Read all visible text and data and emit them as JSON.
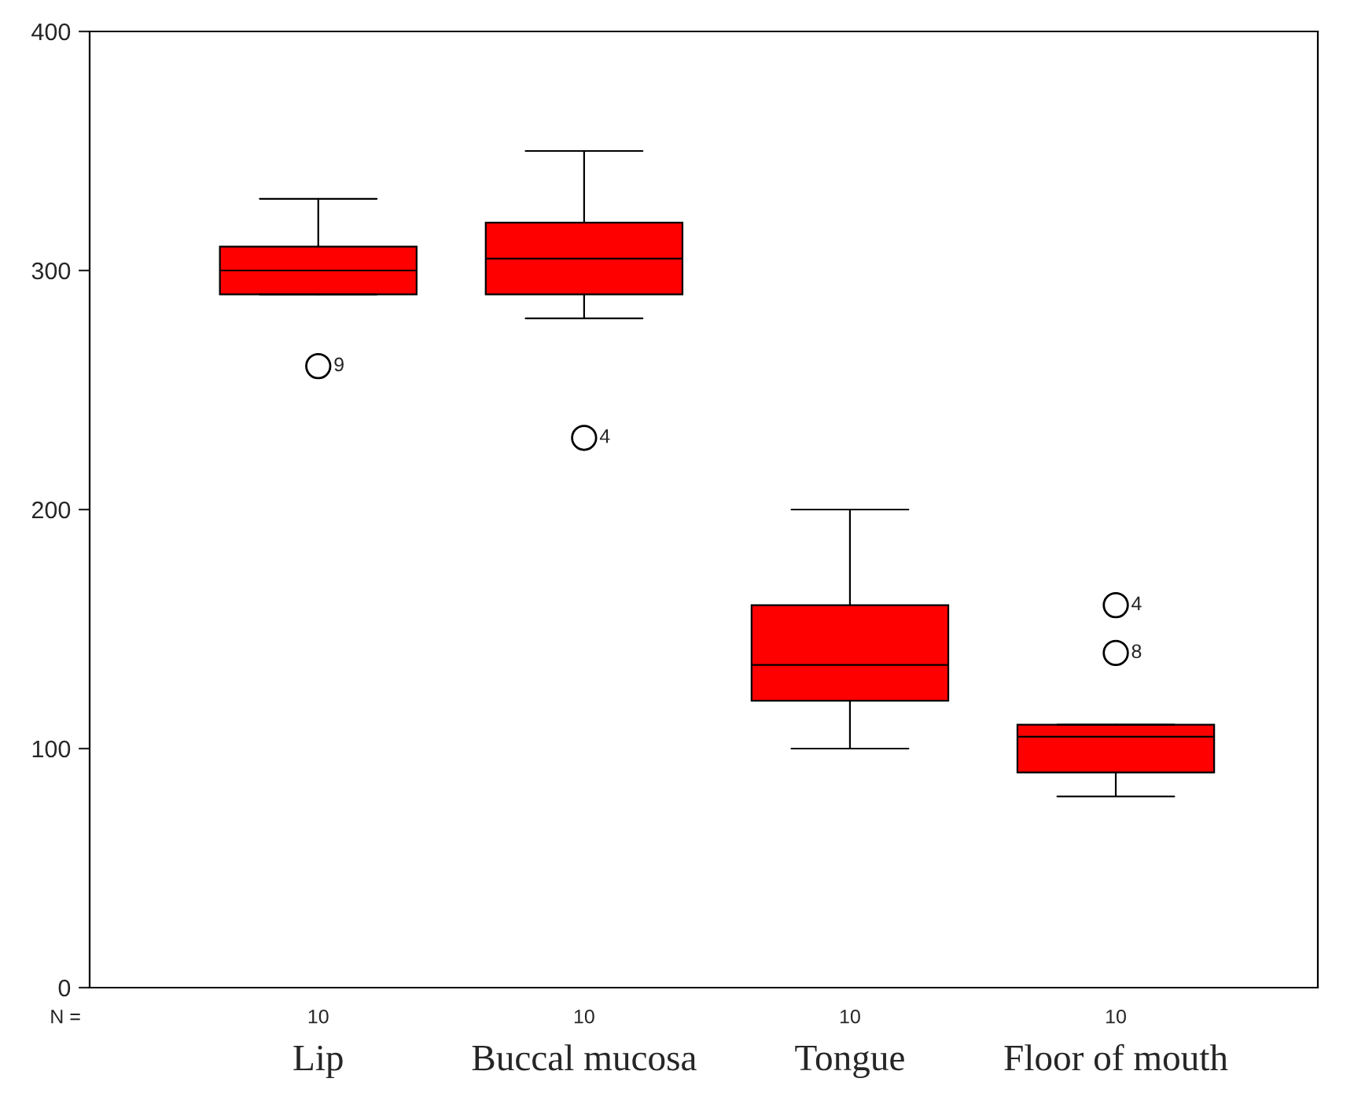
{
  "chart_data": {
    "type": "box",
    "categories": [
      "Lip",
      "Buccal mucosa",
      "Tongue",
      "Floor of mouth"
    ],
    "boxes": [
      {
        "low": 290,
        "q1": 290,
        "median": 300,
        "q3": 310,
        "high": 330,
        "outliers": [
          260
        ]
      },
      {
        "low": 280,
        "q1": 290,
        "median": 305,
        "q3": 320,
        "high": 350,
        "outliers": [
          230
        ]
      },
      {
        "low": 100,
        "q1": 120,
        "median": 135,
        "q3": 160,
        "high": 200
      },
      {
        "low": 80,
        "q1": 90,
        "median": 105,
        "q3": 110,
        "high": 110,
        "outliers": [
          160,
          140
        ]
      }
    ],
    "color": "#ff0000",
    "ylim": [
      0,
      400
    ],
    "yticks": [
      0,
      100,
      200,
      300,
      400
    ],
    "grid": false,
    "annotations": [
      "9",
      "4",
      "4",
      "8",
      "N =",
      "10",
      "10",
      "10",
      "10"
    ]
  }
}
